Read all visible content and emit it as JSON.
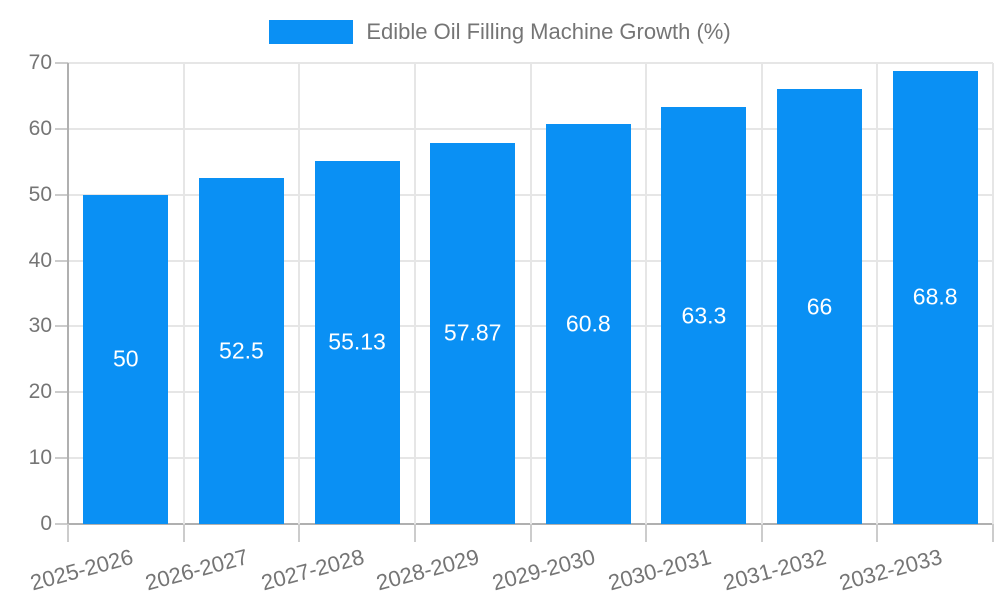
{
  "legend": {
    "label": "Edible Oil Filling Machine Growth (%)"
  },
  "colors": {
    "bar": "#0A90F4",
    "grid": "#E6E6E6",
    "axis": "#B0B0B0",
    "tick": "#CCCCCC",
    "text": "#757575",
    "value_label": "#FFFFFF",
    "background": "#FFFFFF"
  },
  "chart_data": {
    "type": "bar",
    "title": "Edible Oil Filling Machine Growth (%)",
    "categories": [
      "2025-2026",
      "2026-2027",
      "2027-2028",
      "2028-2029",
      "2029-2030",
      "2030-2031",
      "2031-2032",
      "2032-2033"
    ],
    "values": [
      50,
      52.5,
      55.13,
      57.87,
      60.8,
      63.3,
      66,
      68.8
    ],
    "value_labels": [
      "50",
      "52.5",
      "55.13",
      "57.87",
      "60.8",
      "63.3",
      "66",
      "68.8"
    ],
    "xlabel": "",
    "ylabel": "",
    "ylim": [
      0,
      70
    ],
    "ytick_labels": [
      "0",
      "10",
      "20",
      "30",
      "40",
      "50",
      "60",
      "70"
    ],
    "grid": true,
    "legend_position": "top",
    "x_label_rotation_deg": -15
  }
}
